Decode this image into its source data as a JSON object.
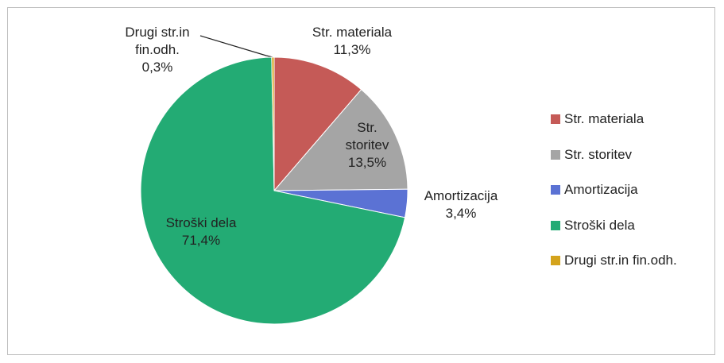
{
  "chart_data": {
    "type": "pie",
    "categories": [
      "Str. materiala",
      "Str. storitev",
      "Amortizacija",
      "Stroški dela",
      "Drugi str.in fin.odh."
    ],
    "values": [
      11.3,
      13.5,
      3.4,
      71.4,
      0.3
    ],
    "value_labels": [
      "11,3%",
      "13,5%",
      "3,4%",
      "71,4%",
      "0,3%"
    ],
    "colors": [
      "#c55a57",
      "#a5a5a5",
      "#5b72d4",
      "#23ab74",
      "#d4a31c"
    ],
    "legend": "right"
  }
}
